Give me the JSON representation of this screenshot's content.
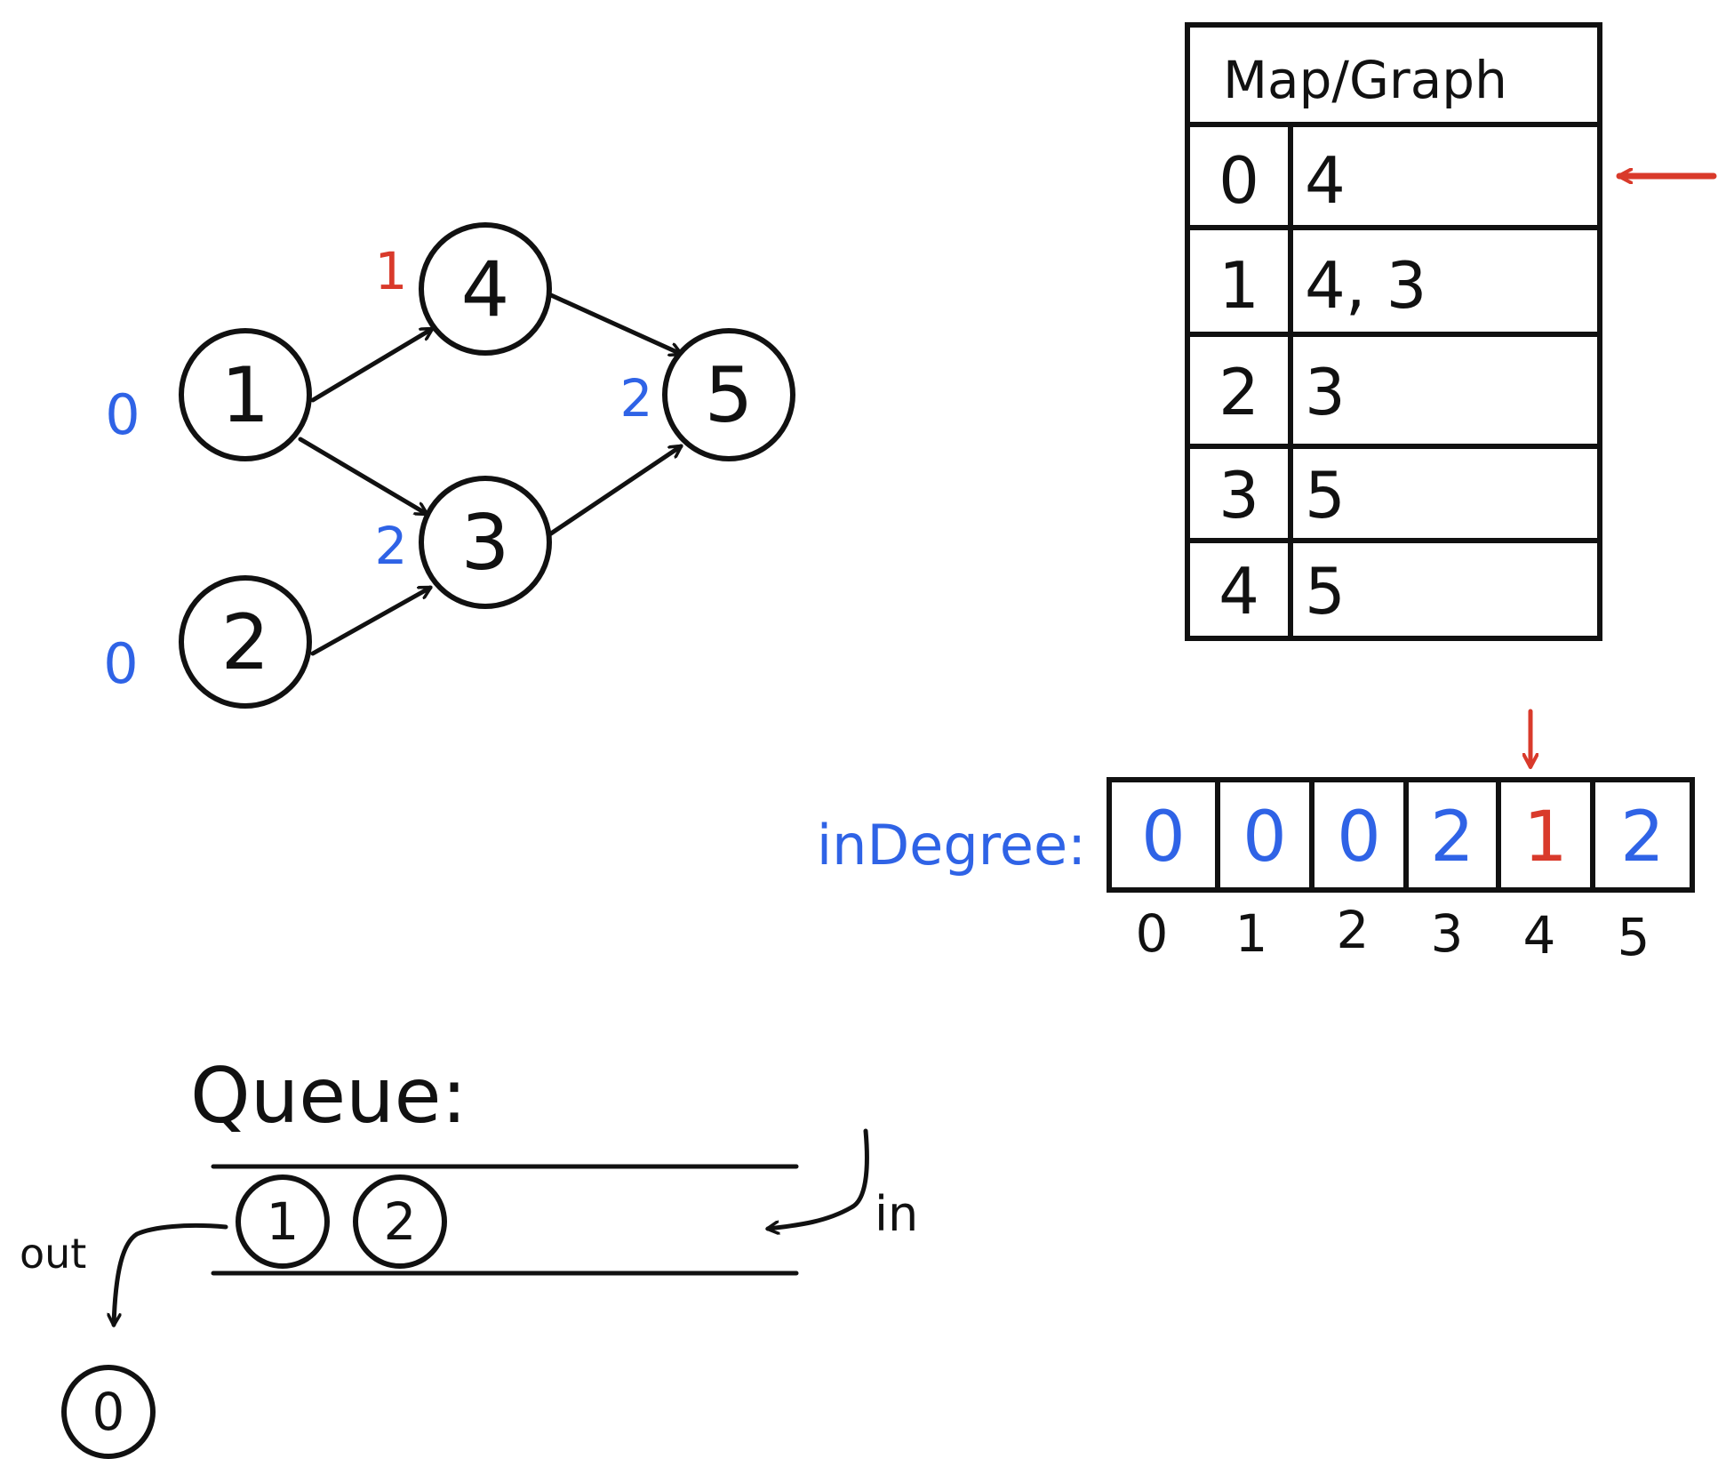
{
  "colors": {
    "ink": "#111111",
    "blue": "#2f63e6",
    "red": "#d93a2b"
  },
  "graph": {
    "nodes": [
      {
        "id": "1",
        "label": "1",
        "degree": "0",
        "degree_color": "blue"
      },
      {
        "id": "2",
        "label": "2",
        "degree": "0",
        "degree_color": "blue"
      },
      {
        "id": "3",
        "label": "3",
        "degree": "2",
        "degree_color": "blue"
      },
      {
        "id": "4",
        "label": "4",
        "degree": "1",
        "degree_color": "red"
      },
      {
        "id": "5",
        "label": "5",
        "degree": "2",
        "degree_color": "blue"
      }
    ],
    "edges": [
      {
        "from": "1",
        "to": "4"
      },
      {
        "from": "1",
        "to": "3"
      },
      {
        "from": "2",
        "to": "3"
      },
      {
        "from": "4",
        "to": "5"
      },
      {
        "from": "3",
        "to": "5"
      }
    ]
  },
  "map": {
    "title": "Map/Graph",
    "rows": [
      {
        "key": "0",
        "value": "4",
        "pointer": true
      },
      {
        "key": "1",
        "value": "4, 3",
        "pointer": false
      },
      {
        "key": "2",
        "value": "3",
        "pointer": false
      },
      {
        "key": "3",
        "value": "5",
        "pointer": false
      },
      {
        "key": "4",
        "value": "5",
        "pointer": false
      }
    ]
  },
  "in_degree": {
    "label": "inDegree:",
    "cells": [
      {
        "value": "0",
        "color": "blue"
      },
      {
        "value": "0",
        "color": "blue"
      },
      {
        "value": "0",
        "color": "blue"
      },
      {
        "value": "2",
        "color": "blue"
      },
      {
        "value": "1",
        "color": "red"
      },
      {
        "value": "2",
        "color": "blue"
      }
    ],
    "indices": [
      "0",
      "1",
      "2",
      "3",
      "4",
      "5"
    ],
    "highlight_index": 4
  },
  "queue": {
    "label": "Queue:",
    "items": [
      "1",
      "2"
    ],
    "out_label": "out",
    "in_label": "in",
    "dequeued": "0"
  }
}
